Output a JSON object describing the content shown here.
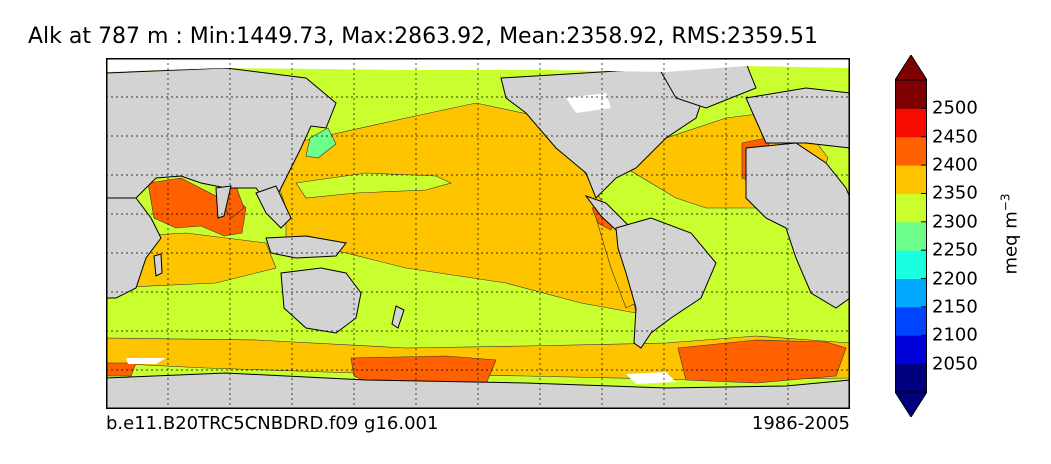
{
  "title": "Alk at 787 m : Min:1449.73, Max:2863.92, Mean:2358.92, RMS:2359.51",
  "footer": {
    "run": "b.e11.B20TRC5CNBDRD.f09 g16.001",
    "period": "1986-2005"
  },
  "colorbar": {
    "units": "meq m",
    "units_exponent": "−3",
    "ticks": [
      "2050",
      "2100",
      "2150",
      "2200",
      "2250",
      "2300",
      "2350",
      "2400",
      "2450",
      "2500"
    ],
    "levels": [
      2025,
      2050,
      2100,
      2150,
      2200,
      2250,
      2300,
      2350,
      2400,
      2450,
      2500,
      2550
    ],
    "colors": [
      "#00007f",
      "#0000d8",
      "#0044ff",
      "#00a8ff",
      "#19ffdf",
      "#6dff8a",
      "#c9ff2e",
      "#ffc400",
      "#ff6000",
      "#f50b00",
      "#7f0000"
    ],
    "under_color": "#00007f",
    "over_color": "#7f0000"
  },
  "map": {
    "projection": "cylindrical equidistant",
    "graticule": "dotted",
    "land_color": "#d3d3d3",
    "missing_color": "#ffffff",
    "field_colors": {
      "c2300": "#c9ff2e",
      "c2350": "#ffc400",
      "c2400": "#ff6000",
      "c2250": "#6dff8a"
    }
  }
}
